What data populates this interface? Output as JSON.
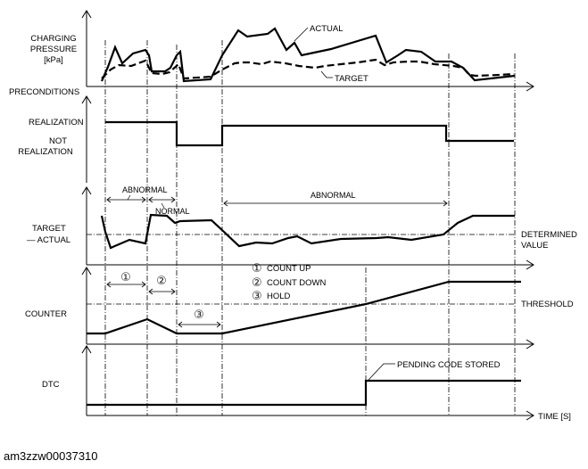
{
  "diagram": {
    "charging_pressure": {
      "label_line1": "CHARGING",
      "label_line2": "PRESSURE",
      "label_line3": "[kPa]",
      "actual_label": "ACTUAL",
      "target_label": "TARGET"
    },
    "preconditions": {
      "label": "PRECONDITIONS",
      "realization": "REALIZATION",
      "not_realization_line1": "NOT",
      "not_realization_line2": "REALIZATION"
    },
    "target_actual": {
      "label_line1": "TARGET",
      "label_line2": "— ACTUAL",
      "abnormal_1": "ABNORMAL",
      "normal": "NORMAL",
      "abnormal_2": "ABNORMAL",
      "determined_line1": "DETERMINED",
      "determined_line2": "VALUE"
    },
    "counter": {
      "label": "COUNTER",
      "threshold": "THRESHOLD",
      "legend": [
        {
          "num": "1",
          "text": "COUNT UP"
        },
        {
          "num": "2",
          "text": "COUNT DOWN"
        },
        {
          "num": "3",
          "text": "HOLD"
        }
      ]
    },
    "dtc": {
      "label": "DTC",
      "pending": "PENDING CODE STORED"
    },
    "time_axis": "TIME [S]"
  },
  "image_id": "am3zzw00037310"
}
